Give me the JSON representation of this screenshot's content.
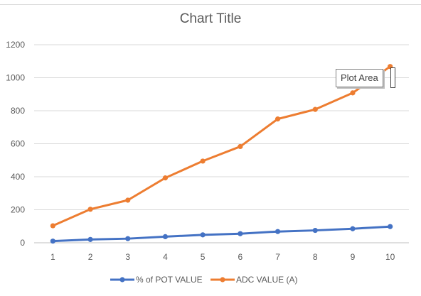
{
  "chart_data": {
    "type": "line",
    "title": "Chart Title",
    "xlabel": "",
    "ylabel": "",
    "categories": [
      "1",
      "2",
      "3",
      "4",
      "5",
      "6",
      "7",
      "8",
      "9",
      "10"
    ],
    "ylim": [
      0,
      1200
    ],
    "yticks": [
      "0",
      "200",
      "400",
      "600",
      "800",
      "1000",
      "1200"
    ],
    "grid": true,
    "legend_position": "bottom",
    "series": [
      {
        "name": "% of POT VALUE",
        "color": "#4472c4",
        "values": [
          10,
          20,
          25,
          37,
          48,
          55,
          68,
          75,
          85,
          98
        ]
      },
      {
        "name": "ADC VALUE (A)",
        "color": "#ed7d31",
        "values": [
          103,
          203,
          258,
          393,
          495,
          583,
          750,
          808,
          908,
          1068
        ]
      }
    ]
  },
  "tooltip": {
    "label": "Plot Area"
  }
}
